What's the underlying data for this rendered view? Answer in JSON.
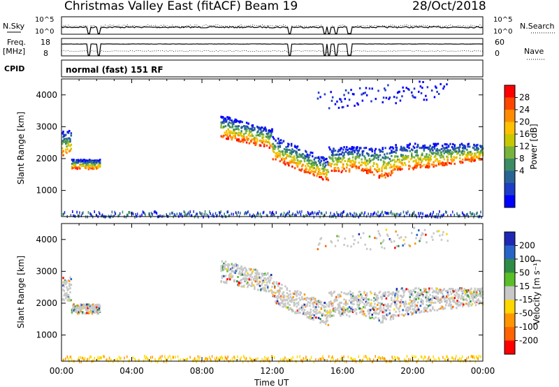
{
  "header": {
    "station": "Christmas Valley East (fitACF)",
    "beam": "Beam 19",
    "date": "28/Oct/2018"
  },
  "panels": {
    "nsky_label": "N.Sky",
    "nsky_tick_hi": "10^5",
    "nsky_tick_lo": "10^0",
    "nsearch_label": "N.Search",
    "nsearch_tick_hi": "10^5",
    "nsearch_tick_lo": "10^0",
    "freq_label": "Freq.",
    "freq_unit": "[MHz]",
    "freq_tick_hi": "18",
    "freq_tick_lo": "8",
    "nave_label": "Nave",
    "nave_tick_hi": "60",
    "nave_tick_lo": "0",
    "cpid_label": "CPID",
    "cpid_value": "normal (fast) 151 RF"
  },
  "chart_data": [
    {
      "type": "heatmap",
      "name": "power",
      "ylabel": "Slant Range [km]",
      "xlabel": "Time UT",
      "xlim_hours": [
        0,
        24
      ],
      "ylim": [
        180,
        4500
      ],
      "y_ticks": [
        "1000",
        "2000",
        "3000",
        "4000"
      ],
      "colorbar": {
        "label": "Power [dB]",
        "ticks": [
          "28",
          "24",
          "20",
          "16",
          "12",
          "8",
          "4"
        ],
        "colors": [
          "#ff0000",
          "#ff4500",
          "#ff8c00",
          "#ffc000",
          "#c8c800",
          "#78b43c",
          "#3c8c64",
          "#286496",
          "#1e3cc8",
          "#0000ff"
        ]
      }
    },
    {
      "type": "heatmap",
      "name": "velocity",
      "ylabel": "Slant Range [km]",
      "xlabel": "Time UT",
      "xlim_hours": [
        0,
        24
      ],
      "ylim": [
        180,
        4500
      ],
      "y_ticks": [
        "1000",
        "2000",
        "3000",
        "4000"
      ],
      "colorbar": {
        "label": "Velocity [m s⁻¹]",
        "ticks": [
          "200",
          "100",
          "50",
          "15",
          "-15",
          "-50",
          "-100",
          "-200"
        ],
        "colors": [
          "#1e28b4",
          "#2864c8",
          "#2e8c46",
          "#5abe28",
          "#c8c8c8",
          "#ffd700",
          "#ff9600",
          "#ff6400",
          "#ff0000"
        ]
      }
    }
  ],
  "x_axis": {
    "ticks": [
      "00:00",
      "04:00",
      "08:00",
      "12:00",
      "16:00",
      "20:00",
      "00:00"
    ],
    "label": "Time UT"
  }
}
